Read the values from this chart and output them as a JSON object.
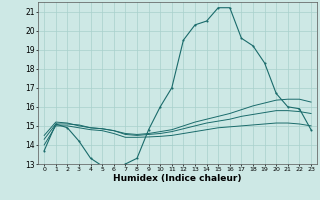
{
  "xlabel": "Humidex (Indice chaleur)",
  "background_color": "#cde8e5",
  "grid_color": "#a8d0cc",
  "line_color": "#1a6b6b",
  "xlim": [
    -0.5,
    23.5
  ],
  "ylim": [
    13,
    21.5
  ],
  "yticks": [
    13,
    14,
    15,
    16,
    17,
    18,
    19,
    20,
    21
  ],
  "xticks": [
    0,
    1,
    2,
    3,
    4,
    5,
    6,
    7,
    8,
    9,
    10,
    11,
    12,
    13,
    14,
    15,
    16,
    17,
    18,
    19,
    20,
    21,
    22,
    23
  ],
  "curve1_x": [
    0,
    1,
    2,
    3,
    4,
    5,
    6,
    7,
    8,
    9,
    10,
    11,
    12,
    13,
    14,
    15,
    16,
    17,
    18,
    19,
    20,
    21,
    22,
    23
  ],
  "curve1_y": [
    13.7,
    15.1,
    14.9,
    14.2,
    13.3,
    12.9,
    12.7,
    13.0,
    13.3,
    14.8,
    16.0,
    17.0,
    19.5,
    20.3,
    20.5,
    21.2,
    21.2,
    19.6,
    19.2,
    18.3,
    16.7,
    16.0,
    15.9,
    14.8
  ],
  "curve2_x": [
    0,
    1,
    2,
    3,
    4,
    5,
    6,
    7,
    8,
    9,
    10,
    11,
    12,
    13,
    14,
    15,
    16,
    17,
    18,
    19,
    20,
    21,
    22,
    23
  ],
  "curve2_y": [
    14.0,
    15.0,
    15.0,
    14.9,
    14.8,
    14.75,
    14.6,
    14.4,
    14.4,
    14.42,
    14.45,
    14.5,
    14.6,
    14.7,
    14.8,
    14.9,
    14.95,
    15.0,
    15.05,
    15.1,
    15.15,
    15.15,
    15.1,
    15.0
  ],
  "curve3_x": [
    0,
    1,
    2,
    3,
    4,
    5,
    6,
    7,
    8,
    9,
    10,
    11,
    12,
    13,
    14,
    15,
    16,
    17,
    18,
    19,
    20,
    21,
    22,
    23
  ],
  "curve3_y": [
    14.3,
    15.1,
    15.1,
    15.05,
    14.9,
    14.85,
    14.75,
    14.55,
    14.5,
    14.55,
    14.6,
    14.7,
    14.85,
    15.0,
    15.15,
    15.25,
    15.35,
    15.5,
    15.6,
    15.7,
    15.8,
    15.8,
    15.75,
    15.65
  ],
  "curve4_x": [
    0,
    1,
    2,
    3,
    4,
    5,
    6,
    7,
    8,
    9,
    10,
    11,
    12,
    13,
    14,
    15,
    16,
    17,
    18,
    19,
    20,
    21,
    22,
    23
  ],
  "curve4_y": [
    14.5,
    15.2,
    15.15,
    15.0,
    14.9,
    14.85,
    14.75,
    14.6,
    14.55,
    14.6,
    14.7,
    14.8,
    15.0,
    15.2,
    15.35,
    15.5,
    15.65,
    15.85,
    16.05,
    16.2,
    16.35,
    16.4,
    16.4,
    16.25
  ]
}
